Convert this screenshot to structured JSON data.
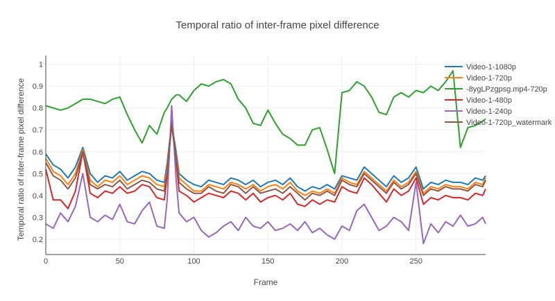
{
  "chart_data": {
    "type": "line",
    "title": "Temporal ratio of inter-frame pixel difference",
    "xlabel": "Frame",
    "ylabel": "Temporal ratio of inter-frame pixel difference",
    "xlim": [
      0,
      297
    ],
    "ylim": [
      0.13,
      1.04
    ],
    "x_ticks": [
      0,
      50,
      100,
      150,
      200,
      250
    ],
    "y_ticks": [
      0.2,
      0.3,
      0.4,
      0.5,
      0.6,
      0.7,
      0.8,
      0.9,
      1
    ],
    "grid": true,
    "legend_position": "top-right",
    "x": [
      0,
      5,
      10,
      15,
      20,
      25,
      30,
      35,
      40,
      45,
      50,
      55,
      60,
      65,
      70,
      75,
      80,
      82,
      85,
      88,
      90,
      95,
      100,
      105,
      110,
      115,
      120,
      125,
      130,
      135,
      140,
      145,
      150,
      155,
      160,
      165,
      170,
      175,
      180,
      185,
      190,
      195,
      200,
      205,
      210,
      215,
      220,
      225,
      230,
      235,
      240,
      245,
      250,
      255,
      260,
      265,
      270,
      275,
      280,
      285,
      290,
      295,
      297
    ],
    "series": [
      {
        "name": "Video-1-1080p",
        "color": "#1f77b4",
        "values": [
          0.59,
          0.54,
          0.52,
          0.48,
          0.53,
          0.62,
          0.5,
          0.46,
          0.49,
          0.48,
          0.51,
          0.47,
          0.49,
          0.51,
          0.5,
          0.47,
          0.46,
          0.55,
          0.73,
          0.6,
          0.5,
          0.47,
          0.45,
          0.44,
          0.47,
          0.46,
          0.45,
          0.48,
          0.47,
          0.45,
          0.47,
          0.44,
          0.46,
          0.47,
          0.45,
          0.48,
          0.44,
          0.42,
          0.44,
          0.43,
          0.45,
          0.43,
          0.49,
          0.48,
          0.47,
          0.53,
          0.5,
          0.47,
          0.44,
          0.49,
          0.46,
          0.48,
          0.53,
          0.43,
          0.46,
          0.45,
          0.47,
          0.46,
          0.46,
          0.45,
          0.48,
          0.47,
          0.49
        ]
      },
      {
        "name": "Video-1-720p",
        "color": "#ff7f0e",
        "values": [
          0.57,
          0.51,
          0.49,
          0.45,
          0.5,
          0.61,
          0.47,
          0.44,
          0.47,
          0.46,
          0.49,
          0.45,
          0.47,
          0.49,
          0.48,
          0.45,
          0.44,
          0.53,
          0.72,
          0.58,
          0.48,
          0.45,
          0.42,
          0.42,
          0.45,
          0.44,
          0.43,
          0.46,
          0.45,
          0.43,
          0.45,
          0.42,
          0.44,
          0.45,
          0.43,
          0.46,
          0.42,
          0.4,
          0.42,
          0.41,
          0.43,
          0.41,
          0.48,
          0.46,
          0.45,
          0.51,
          0.48,
          0.45,
          0.42,
          0.47,
          0.44,
          0.46,
          0.51,
          0.41,
          0.44,
          0.43,
          0.45,
          0.44,
          0.44,
          0.43,
          0.46,
          0.45,
          0.48
        ]
      },
      {
        "name": "-8ygLPzgpsg.mp4-720p",
        "color": "#2ca02c",
        "values": [
          0.81,
          0.8,
          0.79,
          0.8,
          0.82,
          0.84,
          0.84,
          0.83,
          0.82,
          0.84,
          0.85,
          0.77,
          0.7,
          0.64,
          0.72,
          0.68,
          0.78,
          0.8,
          0.84,
          0.86,
          0.86,
          0.83,
          0.88,
          0.91,
          0.9,
          0.92,
          0.93,
          0.91,
          0.84,
          0.8,
          0.73,
          0.72,
          0.79,
          0.73,
          0.68,
          0.66,
          0.63,
          0.63,
          0.7,
          0.71,
          0.61,
          0.5,
          0.87,
          0.88,
          0.92,
          0.9,
          0.85,
          0.78,
          0.77,
          0.85,
          0.87,
          0.85,
          0.88,
          0.87,
          0.9,
          0.88,
          0.92,
          0.97,
          0.62,
          0.71,
          0.72,
          0.74,
          0.75
        ]
      },
      {
        "name": "Video-1-480p",
        "color": "#d62728",
        "values": [
          0.52,
          0.38,
          0.38,
          0.34,
          0.42,
          0.6,
          0.41,
          0.39,
          0.42,
          0.41,
          0.44,
          0.41,
          0.42,
          0.45,
          0.44,
          0.39,
          0.38,
          0.49,
          0.74,
          0.56,
          0.42,
          0.4,
          0.37,
          0.39,
          0.41,
          0.4,
          0.39,
          0.42,
          0.41,
          0.38,
          0.41,
          0.37,
          0.39,
          0.4,
          0.38,
          0.41,
          0.36,
          0.35,
          0.38,
          0.36,
          0.38,
          0.37,
          0.44,
          0.42,
          0.41,
          0.48,
          0.45,
          0.41,
          0.37,
          0.43,
          0.4,
          0.42,
          0.48,
          0.36,
          0.39,
          0.38,
          0.4,
          0.39,
          0.39,
          0.38,
          0.41,
          0.4,
          0.43
        ]
      },
      {
        "name": "Video-1-240p",
        "color": "#9467bd",
        "values": [
          0.27,
          0.25,
          0.32,
          0.28,
          0.35,
          0.5,
          0.3,
          0.28,
          0.31,
          0.29,
          0.36,
          0.28,
          0.27,
          0.33,
          0.37,
          0.26,
          0.25,
          0.38,
          0.81,
          0.47,
          0.32,
          0.28,
          0.3,
          0.24,
          0.21,
          0.23,
          0.26,
          0.28,
          0.24,
          0.3,
          0.26,
          0.25,
          0.28,
          0.24,
          0.25,
          0.27,
          0.24,
          0.28,
          0.23,
          0.25,
          0.22,
          0.2,
          0.26,
          0.24,
          0.33,
          0.36,
          0.3,
          0.24,
          0.26,
          0.3,
          0.28,
          0.24,
          0.46,
          0.18,
          0.27,
          0.23,
          0.28,
          0.26,
          0.31,
          0.26,
          0.27,
          0.3,
          0.27
        ]
      },
      {
        "name": "Video-1-720p_watermark",
        "color": "#8c564b",
        "values": [
          0.55,
          0.49,
          0.47,
          0.43,
          0.48,
          0.6,
          0.45,
          0.43,
          0.45,
          0.44,
          0.47,
          0.43,
          0.45,
          0.47,
          0.46,
          0.43,
          0.42,
          0.51,
          0.72,
          0.57,
          0.46,
          0.43,
          0.41,
          0.41,
          0.44,
          0.42,
          0.41,
          0.45,
          0.44,
          0.41,
          0.44,
          0.41,
          0.42,
          0.43,
          0.41,
          0.44,
          0.41,
          0.38,
          0.41,
          0.4,
          0.42,
          0.4,
          0.47,
          0.45,
          0.44,
          0.5,
          0.47,
          0.44,
          0.41,
          0.46,
          0.43,
          0.45,
          0.5,
          0.4,
          0.43,
          0.42,
          0.44,
          0.43,
          0.43,
          0.42,
          0.45,
          0.44,
          0.47
        ]
      }
    ]
  }
}
